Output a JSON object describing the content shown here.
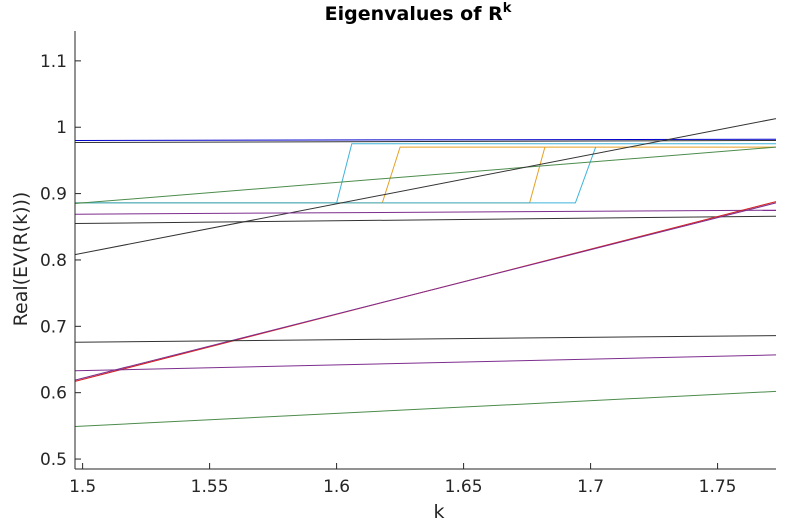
{
  "chart_data": {
    "type": "line",
    "title": "Eigenvalues of R",
    "title_superscript": "k",
    "xlabel": "k",
    "ylabel": "Real(EV(R(k)))",
    "xlim": [
      1.497,
      1.773
    ],
    "ylim": [
      0.485,
      1.145
    ],
    "xticks": [
      1.5,
      1.55,
      1.6,
      1.65,
      1.7,
      1.75
    ],
    "xtick_labels": [
      "1.5",
      "1.55",
      "1.6",
      "1.65",
      "1.7",
      "1.75"
    ],
    "yticks": [
      0.5,
      0.6,
      0.7,
      0.8,
      0.9,
      1.0,
      1.1
    ],
    "ytick_labels": [
      "0.5",
      "0.6",
      "0.7",
      "0.8",
      "0.9",
      "1",
      "1.1"
    ],
    "grid": false,
    "series": [
      {
        "color": "#0000cc",
        "x": [
          1.497,
          1.773
        ],
        "y": [
          0.98,
          0.982
        ]
      },
      {
        "color": "#333333",
        "x": [
          1.497,
          1.773
        ],
        "y": [
          0.977,
          0.98
        ]
      },
      {
        "color": "#e6a020",
        "x": [
          1.497,
          1.618,
          1.625,
          1.773
        ],
        "y": [
          0.886,
          0.886,
          0.97,
          0.97
        ]
      },
      {
        "color": "#3cb4dc",
        "x": [
          1.497,
          1.6,
          1.606,
          1.773
        ],
        "y": [
          0.886,
          0.886,
          0.975,
          0.975
        ]
      },
      {
        "color": "#e6a020",
        "x": [
          1.497,
          1.676,
          1.682
        ],
        "y": [
          0.886,
          0.886,
          0.97
        ]
      },
      {
        "color": "#3cb4dc",
        "x": [
          1.497,
          1.694,
          1.702
        ],
        "y": [
          0.886,
          0.886,
          0.97
        ]
      },
      {
        "color": "#4c8c4c",
        "x": [
          1.497,
          1.773
        ],
        "y": [
          0.885,
          0.97
        ]
      },
      {
        "color": "#333333",
        "x": [
          1.497,
          1.773
        ],
        "y": [
          0.808,
          1.013
        ]
      },
      {
        "color": "#7d2e8e",
        "x": [
          1.497,
          1.773
        ],
        "y": [
          0.869,
          0.875
        ]
      },
      {
        "color": "#333333",
        "x": [
          1.497,
          1.773
        ],
        "y": [
          0.855,
          0.866
        ]
      },
      {
        "color": "#d62020",
        "x": [
          1.497,
          1.773
        ],
        "y": [
          0.617,
          0.888
        ]
      },
      {
        "color": "#7d2e8e",
        "x": [
          1.497,
          1.773
        ],
        "y": [
          0.619,
          0.886
        ]
      },
      {
        "color": "#333333",
        "x": [
          1.497,
          1.773
        ],
        "y": [
          0.676,
          0.686
        ]
      },
      {
        "color": "#7d2e8e",
        "x": [
          1.497,
          1.773
        ],
        "y": [
          0.633,
          0.657
        ]
      },
      {
        "color": "#4c8c4c",
        "x": [
          1.497,
          1.773
        ],
        "y": [
          0.549,
          0.602
        ]
      }
    ]
  }
}
